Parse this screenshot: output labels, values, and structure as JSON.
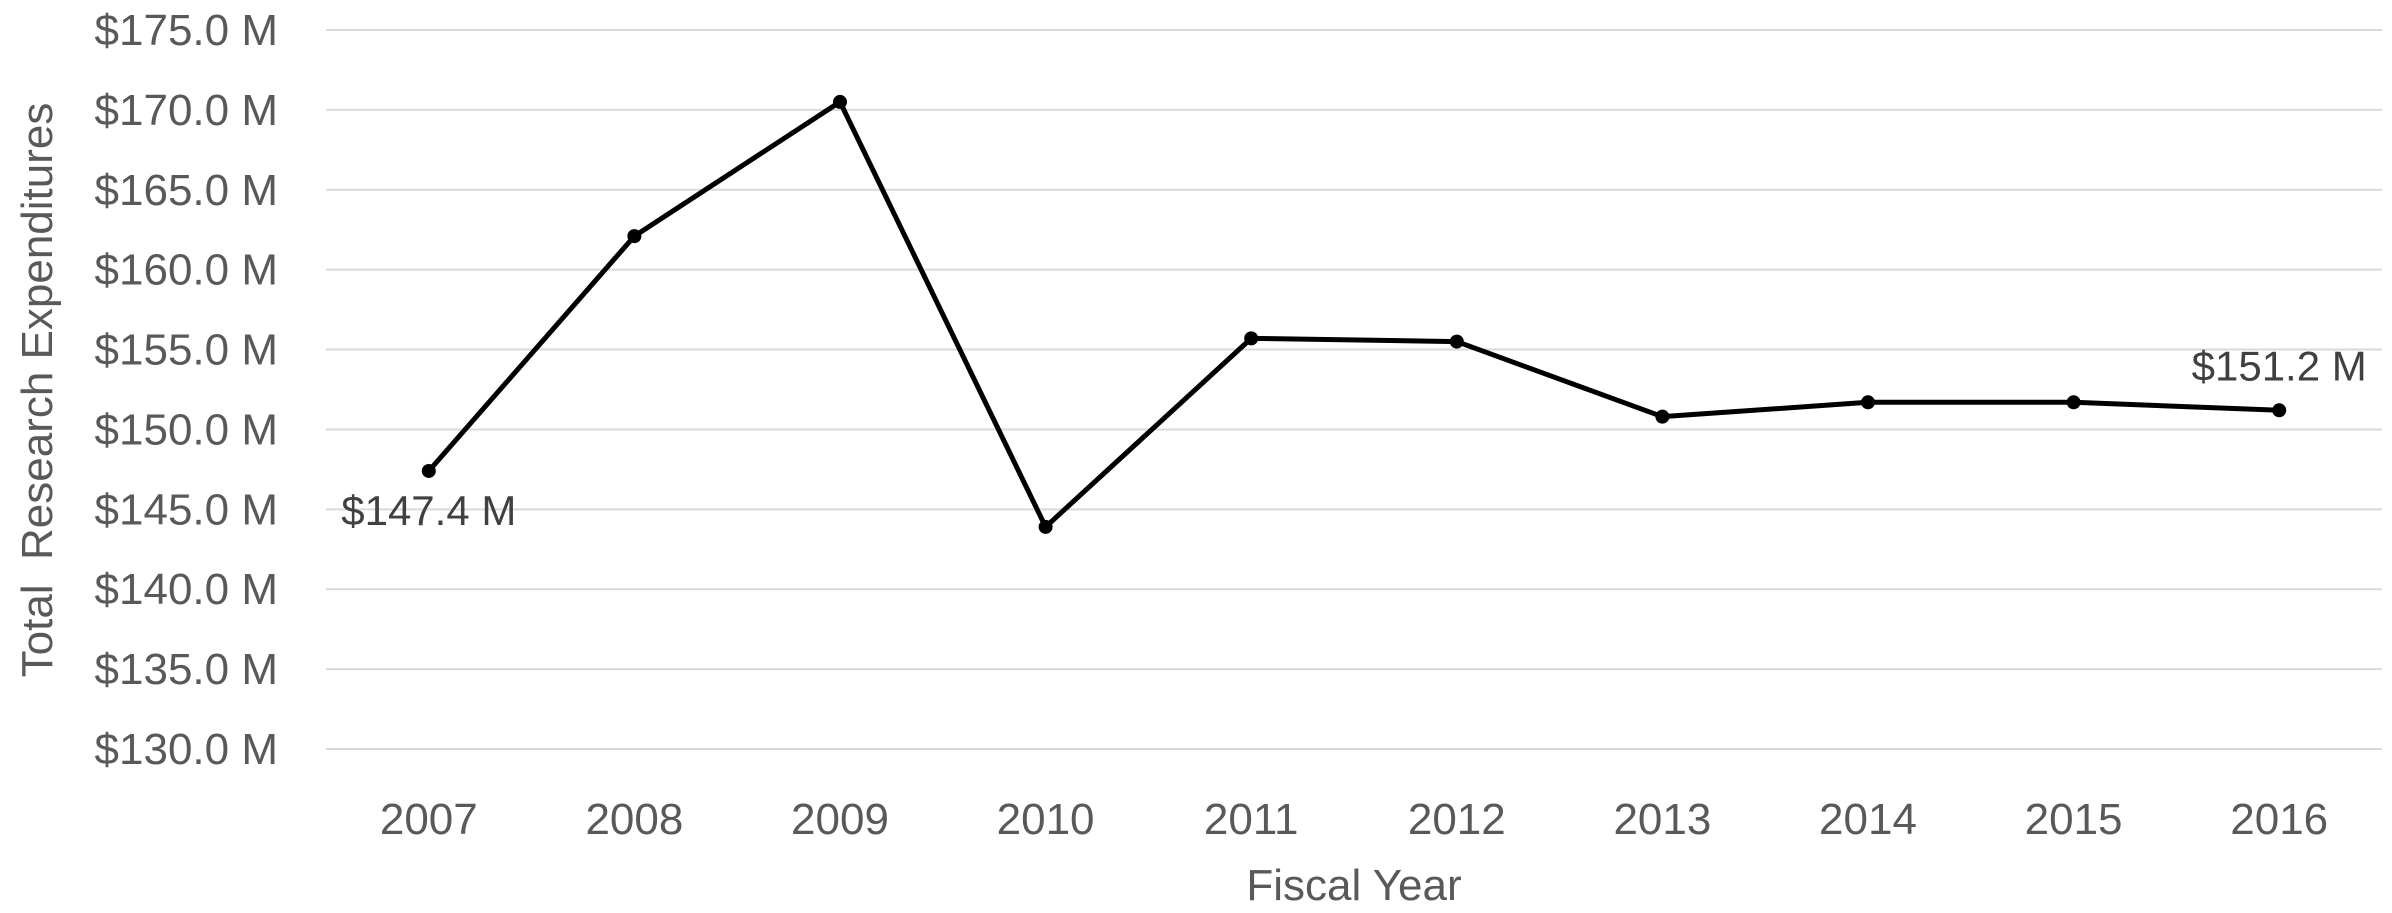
{
  "chart_data": {
    "type": "line",
    "title": "",
    "xlabel": "Fiscal Year",
    "ylabel": "Total  Research Expenditures",
    "categories": [
      "2007",
      "2008",
      "2009",
      "2010",
      "2011",
      "2012",
      "2013",
      "2014",
      "2015",
      "2016"
    ],
    "series": [
      {
        "values": [
          147.4,
          162.1,
          170.5,
          143.9,
          155.7,
          155.5,
          150.8,
          151.7,
          151.7,
          151.2
        ],
        "color": "#000000"
      }
    ],
    "ylim": [
      130,
      175
    ],
    "yticks": [
      130,
      135,
      140,
      145,
      150,
      155,
      160,
      165,
      170,
      175
    ],
    "ytick_labels": [
      "$130.0 M",
      "$135.0 M",
      "$140.0 M",
      "$145.0 M",
      "$150.0 M",
      "$155.0 M",
      "$160.0 M",
      "$165.0 M",
      "$170.0 M",
      "$175.0 M"
    ],
    "data_labels": [
      {
        "index": 0,
        "text": "$147.4 M",
        "placement": "below"
      },
      {
        "index": 9,
        "text": "$151.2 M",
        "placement": "above"
      }
    ],
    "grid": "horizontal",
    "legend": "none"
  }
}
